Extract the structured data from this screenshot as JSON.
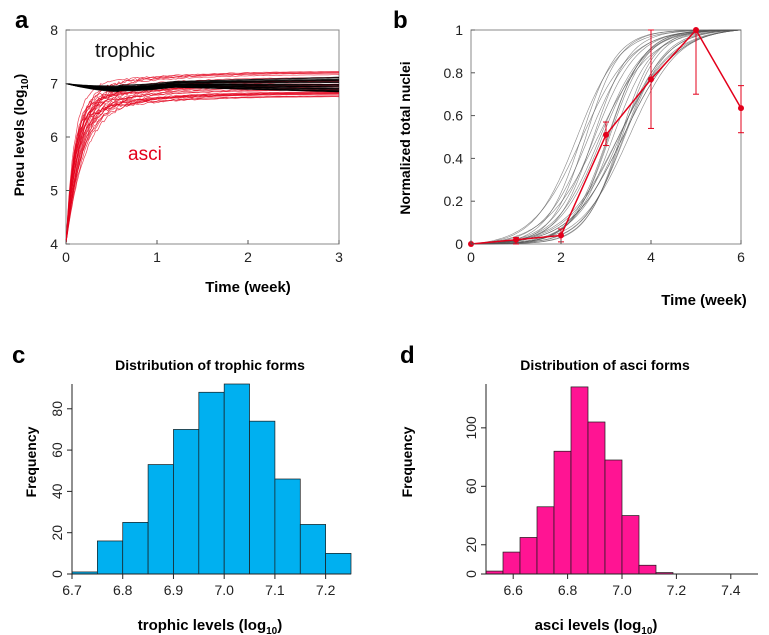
{
  "chart_data": [
    {
      "panel": "a",
      "type": "line",
      "ylabel": "Pneu levels (log",
      "ylabel_sub": "10",
      "ylabel_end": ")",
      "xlabel": "Time (week)",
      "xlim": [
        0,
        3
      ],
      "ylim": [
        4,
        8
      ],
      "xticks": [
        "0",
        "1",
        "2",
        "3"
      ],
      "yticks": [
        "4",
        "5",
        "6",
        "7",
        "8"
      ],
      "annotations": [
        {
          "text": "trophic",
          "color": "#111111"
        },
        {
          "text": "asci",
          "color": "#e3001b"
        }
      ],
      "series": [
        {
          "group": "trophic",
          "color": "#000000",
          "count": 30,
          "start": 7.0,
          "dip": 6.97,
          "end_range": [
            6.85,
            7.15
          ]
        },
        {
          "group": "asci",
          "color": "#e3001b",
          "count": 30,
          "start": 4.0,
          "end_range": [
            6.75,
            7.25
          ]
        }
      ]
    },
    {
      "panel": "b",
      "type": "line",
      "ylabel": "Normalized total nuclei",
      "xlabel": "Time (week)",
      "xlim": [
        0,
        6
      ],
      "ylim": [
        0,
        1
      ],
      "xticks": [
        "0",
        "2",
        "4",
        "6"
      ],
      "yticks": [
        "0",
        "0.2",
        "0.4",
        "0.6",
        "0.8",
        "1"
      ],
      "model_curves": {
        "color": "#555555",
        "count": 24,
        "midpoint_range": [
          2.3,
          3.6
        ],
        "end": [
          6,
          1.0
        ]
      },
      "observed": {
        "color": "#e3001b",
        "x": [
          0,
          1,
          2,
          3,
          4,
          5,
          6
        ],
        "y": [
          0.0,
          0.02,
          0.04,
          0.51,
          0.77,
          1.0,
          0.635
        ],
        "err_low": [
          0.0,
          0.0,
          0.01,
          0.46,
          0.54,
          0.7,
          0.52
        ],
        "err_high": [
          0.0,
          0.03,
          0.07,
          0.57,
          1.0,
          1.0,
          0.74
        ]
      }
    },
    {
      "panel": "c",
      "type": "bar",
      "title": "Distribution of trophic forms",
      "ylabel": "Frequency",
      "xlabel": "trophic levels (log",
      "xlabel_sub": "10",
      "xlabel_end": ")",
      "color": "#00b0f0",
      "xlim": [
        6.7,
        7.25
      ],
      "ylim": [
        0,
        92
      ],
      "xticks": [
        "6.7",
        "6.8",
        "6.9",
        "7.0",
        "7.1",
        "7.2"
      ],
      "yticks": [
        "0",
        "20",
        "40",
        "60",
        "80"
      ],
      "bin_start": 6.7,
      "bin_width": 0.05,
      "values": [
        1,
        16,
        25,
        53,
        70,
        88,
        92,
        74,
        46,
        24,
        10
      ]
    },
    {
      "panel": "d",
      "type": "bar",
      "title": "Distribution of asci forms",
      "ylabel": "Frequency",
      "xlabel": "asci levels  (log",
      "xlabel_sub": "10",
      "xlabel_end": ")",
      "color": "#ff1493",
      "xlim": [
        6.5,
        7.5
      ],
      "ylim": [
        0,
        130
      ],
      "xticks": [
        "6.6",
        "6.8",
        "7.0",
        "7.2",
        "7.4"
      ],
      "yticks": [
        "0",
        "20",
        "60",
        "100"
      ],
      "bin_start": 6.5,
      "bin_width": 0.0625,
      "values": [
        2,
        15,
        25,
        46,
        84,
        128,
        104,
        78,
        40,
        6,
        1
      ]
    }
  ]
}
